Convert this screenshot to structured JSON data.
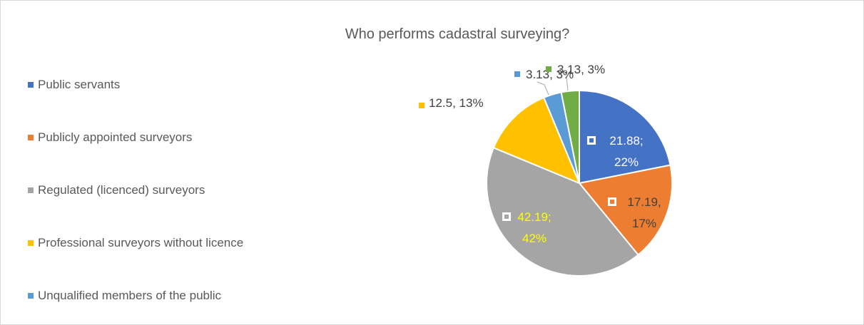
{
  "chart_data": {
    "type": "pie",
    "title": "Who performs cadastral surveying?",
    "categories": [
      "Public servants",
      "Publicly appointed surveyors",
      "Regulated (licenced) surveyors",
      "Professional surveyors without licence",
      "Unqualified members of the public",
      null
    ],
    "values": [
      21.88,
      17.19,
      42.19,
      12.5,
      3.13,
      3.13
    ],
    "value_labels": [
      "21.88; 22%",
      "17.19, 17%",
      "42.19; 42%",
      "12.5, 13%",
      "3.13, 3%",
      "3.13, 3%"
    ],
    "colors": [
      "#4472c4",
      "#ed7d31",
      "#a5a5a5",
      "#ffc000",
      "#5b9bd5",
      "#70ad47"
    ],
    "legend": "left"
  }
}
